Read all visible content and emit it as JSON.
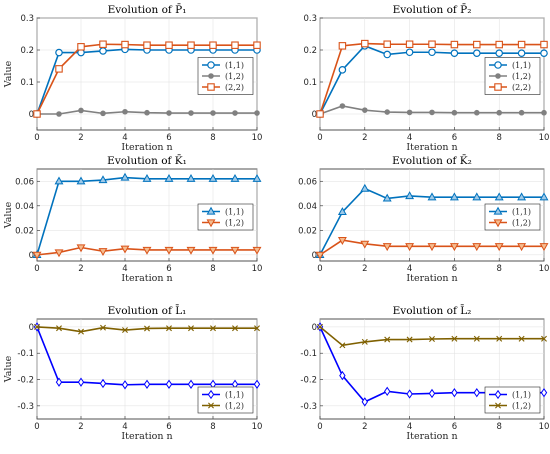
{
  "chart_data": [
    {
      "type": "line",
      "title": "Evolution of P̄₁",
      "xlabel": "Iteration n",
      "ylabel": "Value",
      "xlim": [
        0,
        10
      ],
      "ylim": [
        -0.05,
        0.3
      ],
      "xticks": [
        0,
        2,
        4,
        6,
        8,
        10
      ],
      "yticks": [
        "0",
        "0.1",
        "0.2",
        "0.3"
      ],
      "ytick_values": [
        0,
        0.1,
        0.2,
        0.3
      ],
      "grid": true,
      "legend": "right",
      "x": [
        0,
        1,
        2,
        3,
        4,
        5,
        6,
        7,
        8,
        9,
        10
      ],
      "series": [
        {
          "name": "(1,1)",
          "color": "#0072BD",
          "marker": "circle",
          "values": [
            0,
            0.192,
            0.192,
            0.197,
            0.202,
            0.2,
            0.2,
            0.2,
            0.2,
            0.2,
            0.2
          ]
        },
        {
          "name": "(1,2)",
          "color": "#808080",
          "marker": "dot",
          "values": [
            0,
            0,
            0.011,
            0.002,
            0.007,
            0.004,
            0.003,
            0.003,
            0.003,
            0.003,
            0.003
          ]
        },
        {
          "name": "(2,2)",
          "color": "#D95319",
          "marker": "square",
          "values": [
            0,
            0.141,
            0.21,
            0.218,
            0.217,
            0.215,
            0.215,
            0.215,
            0.215,
            0.215,
            0.215
          ]
        }
      ]
    },
    {
      "type": "line",
      "title": "Evolution of P̄₂",
      "xlabel": "Iteration n",
      "ylabel": "",
      "xlim": [
        0,
        10
      ],
      "ylim": [
        -0.05,
        0.3
      ],
      "xticks": [
        0,
        2,
        4,
        6,
        8,
        10
      ],
      "yticks": [
        "0",
        "0.1",
        "0.2",
        "0.3"
      ],
      "ytick_values": [
        0,
        0.1,
        0.2,
        0.3
      ],
      "grid": true,
      "legend": "right",
      "x": [
        0,
        1,
        2,
        3,
        4,
        5,
        6,
        7,
        8,
        9,
        10
      ],
      "series": [
        {
          "name": "(1,1)",
          "color": "#0072BD",
          "marker": "circle",
          "values": [
            0,
            0.138,
            0.213,
            0.186,
            0.193,
            0.193,
            0.19,
            0.19,
            0.19,
            0.19,
            0.19
          ]
        },
        {
          "name": "(1,2)",
          "color": "#808080",
          "marker": "dot",
          "values": [
            0,
            0.025,
            0.012,
            0.006,
            0.005,
            0.005,
            0.004,
            0.004,
            0.004,
            0.004,
            0.004
          ]
        },
        {
          "name": "(2,2)",
          "color": "#D95319",
          "marker": "square",
          "values": [
            0,
            0.213,
            0.22,
            0.218,
            0.218,
            0.218,
            0.217,
            0.217,
            0.217,
            0.217,
            0.217
          ]
        }
      ]
    },
    {
      "type": "line",
      "title": "Evolution of K̄₁",
      "xlabel": "Iteration n",
      "ylabel": "Value",
      "xlim": [
        0,
        10
      ],
      "ylim": [
        -0.005,
        0.07
      ],
      "xticks": [
        0,
        2,
        4,
        6,
        8,
        10
      ],
      "yticks": [
        "0",
        "0.02",
        "0.04",
        "0.06"
      ],
      "ytick_values": [
        0,
        0.02,
        0.04,
        0.06
      ],
      "grid": true,
      "legend": "right",
      "x": [
        0,
        1,
        2,
        3,
        4,
        5,
        6,
        7,
        8,
        9,
        10
      ],
      "series": [
        {
          "name": "(1,1)",
          "color": "#0072BD",
          "marker": "triangle-up",
          "values": [
            0,
            0.06,
            0.06,
            0.061,
            0.063,
            0.062,
            0.062,
            0.062,
            0.062,
            0.062,
            0.062
          ]
        },
        {
          "name": "(1,2)",
          "color": "#D95319",
          "marker": "triangle-down",
          "values": [
            0,
            0.002,
            0.006,
            0.003,
            0.005,
            0.004,
            0.004,
            0.004,
            0.004,
            0.004,
            0.004
          ]
        }
      ]
    },
    {
      "type": "line",
      "title": "Evolution of K̄₂",
      "xlabel": "Iteration n",
      "ylabel": "",
      "xlim": [
        0,
        10
      ],
      "ylim": [
        -0.005,
        0.07
      ],
      "xticks": [
        0,
        2,
        4,
        6,
        8,
        10
      ],
      "yticks": [
        "0",
        "0.02",
        "0.04",
        "0.06"
      ],
      "ytick_values": [
        0,
        0.02,
        0.04,
        0.06
      ],
      "grid": true,
      "legend": "right",
      "x": [
        0,
        1,
        2,
        3,
        4,
        5,
        6,
        7,
        8,
        9,
        10
      ],
      "series": [
        {
          "name": "(1,1)",
          "color": "#0072BD",
          "marker": "triangle-up",
          "values": [
            0,
            0.035,
            0.054,
            0.046,
            0.048,
            0.047,
            0.047,
            0.047,
            0.047,
            0.047,
            0.047
          ]
        },
        {
          "name": "(1,2)",
          "color": "#D95319",
          "marker": "triangle-down",
          "values": [
            0,
            0.012,
            0.009,
            0.007,
            0.007,
            0.007,
            0.007,
            0.007,
            0.007,
            0.007,
            0.007
          ]
        }
      ]
    },
    {
      "type": "line",
      "title": "Evolution of L̄₁",
      "xlabel": "Iteration n",
      "ylabel": "Value",
      "xlim": [
        0,
        10
      ],
      "ylim": [
        -0.35,
        0.03
      ],
      "xticks": [
        0,
        2,
        4,
        6,
        8,
        10
      ],
      "yticks": [
        "-0.3",
        "-0.2",
        "-0.1",
        "0"
      ],
      "ytick_values": [
        -0.3,
        -0.2,
        -0.1,
        0
      ],
      "grid": true,
      "legend": "bottom-right",
      "x": [
        0,
        1,
        2,
        3,
        4,
        5,
        6,
        7,
        8,
        9,
        10
      ],
      "series": [
        {
          "name": "(1,1)",
          "color": "#0000FF",
          "marker": "diamond",
          "values": [
            0,
            -0.21,
            -0.21,
            -0.215,
            -0.22,
            -0.218,
            -0.218,
            -0.218,
            -0.218,
            -0.218,
            -0.218
          ]
        },
        {
          "name": "(1,2)",
          "color": "#7F6000",
          "marker": "x",
          "values": [
            0,
            -0.005,
            -0.018,
            -0.003,
            -0.012,
            -0.006,
            -0.005,
            -0.005,
            -0.005,
            -0.005,
            -0.005
          ]
        }
      ]
    },
    {
      "type": "line",
      "title": "Evolution of L̄₂",
      "xlabel": "Iteration n",
      "ylabel": "",
      "xlim": [
        0,
        10
      ],
      "ylim": [
        -0.35,
        0.03
      ],
      "xticks": [
        0,
        2,
        4,
        6,
        8,
        10
      ],
      "yticks": [
        "-0.3",
        "-0.2",
        "-0.1",
        "0"
      ],
      "ytick_values": [
        -0.3,
        -0.2,
        -0.1,
        0
      ],
      "grid": true,
      "legend": "bottom-right",
      "x": [
        0,
        1,
        2,
        3,
        4,
        5,
        6,
        7,
        8,
        9,
        10
      ],
      "series": [
        {
          "name": "(1,1)",
          "color": "#0000FF",
          "marker": "diamond",
          "values": [
            0,
            -0.185,
            -0.285,
            -0.245,
            -0.255,
            -0.253,
            -0.25,
            -0.25,
            -0.25,
            -0.25,
            -0.25
          ]
        },
        {
          "name": "(1,2)",
          "color": "#7F6000",
          "marker": "x",
          "values": [
            0,
            -0.07,
            -0.057,
            -0.048,
            -0.048,
            -0.046,
            -0.045,
            -0.045,
            -0.045,
            -0.045,
            -0.045
          ]
        }
      ]
    }
  ]
}
